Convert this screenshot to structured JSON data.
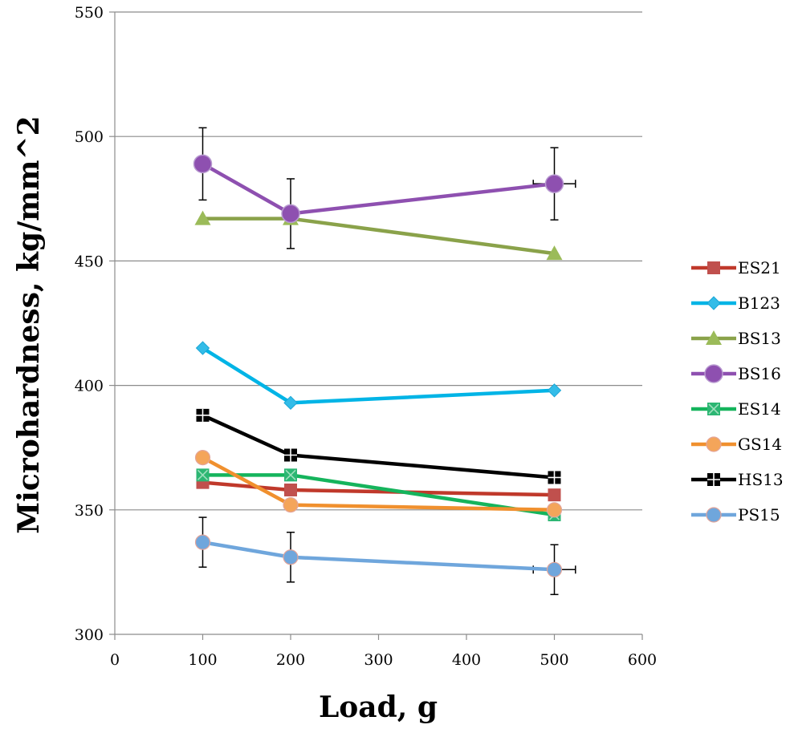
{
  "chart_data": {
    "type": "line",
    "xlabel": "Load, g",
    "ylabel": "Microhardness, kg/mm^2",
    "xlim": [
      0,
      600
    ],
    "ylim": [
      300,
      550
    ],
    "x_ticks": [
      0,
      100,
      200,
      300,
      400,
      500,
      600
    ],
    "y_ticks": [
      300,
      350,
      400,
      450,
      500,
      550
    ],
    "grid": "horizontal",
    "legend_position": "right",
    "series": [
      {
        "name": "ES21",
        "color": "#c0392b",
        "marker": "square",
        "marker_color": "#c0504d",
        "points": [
          {
            "x": 100,
            "y": 361
          },
          {
            "x": 200,
            "y": 358
          },
          {
            "x": 500,
            "y": 356
          }
        ]
      },
      {
        "name": "B123",
        "color": "#00b4e6",
        "marker": "diamond",
        "marker_color": "#33bce8",
        "points": [
          {
            "x": 100,
            "y": 415
          },
          {
            "x": 200,
            "y": 393
          },
          {
            "x": 500,
            "y": 398
          }
        ]
      },
      {
        "name": "BS13",
        "color": "#8aa24a",
        "marker": "triangle",
        "marker_color": "#9bbb59",
        "points": [
          {
            "x": 100,
            "y": 467
          },
          {
            "x": 200,
            "y": 467
          },
          {
            "x": 500,
            "y": 453
          }
        ]
      },
      {
        "name": "BS16",
        "color": "#8e50b0",
        "marker": "circle-large",
        "marker_color": "#8e50b0",
        "points": [
          {
            "x": 100,
            "y": 489,
            "yerr": 14.5
          },
          {
            "x": 200,
            "y": 469,
            "yerr": 14
          },
          {
            "x": 500,
            "y": 481,
            "yerr": 14.5,
            "xerr": 24
          }
        ]
      },
      {
        "name": "ES14",
        "color": "#15b45c",
        "marker": "square-x",
        "marker_color": "#2cb673",
        "points": [
          {
            "x": 100,
            "y": 364
          },
          {
            "x": 200,
            "y": 364
          },
          {
            "x": 500,
            "y": 348
          }
        ]
      },
      {
        "name": "GS14",
        "color": "#f0902e",
        "marker": "circle",
        "marker_color": "#f4a55a",
        "points": [
          {
            "x": 100,
            "y": 371
          },
          {
            "x": 200,
            "y": 352
          },
          {
            "x": 500,
            "y": 350
          }
        ]
      },
      {
        "name": "HS13",
        "color": "#000000",
        "marker": "square-plus",
        "marker_color": "#000000",
        "points": [
          {
            "x": 100,
            "y": 388
          },
          {
            "x": 200,
            "y": 372
          },
          {
            "x": 500,
            "y": 363
          }
        ]
      },
      {
        "name": "PS15",
        "color": "#6fa6dc",
        "marker": "circle",
        "marker_color": "#6fa6dc",
        "points": [
          {
            "x": 100,
            "y": 337,
            "yerr": 10
          },
          {
            "x": 200,
            "y": 331,
            "yerr": 10
          },
          {
            "x": 500,
            "y": 326,
            "yerr": 10,
            "xerr": 24
          }
        ]
      }
    ]
  }
}
